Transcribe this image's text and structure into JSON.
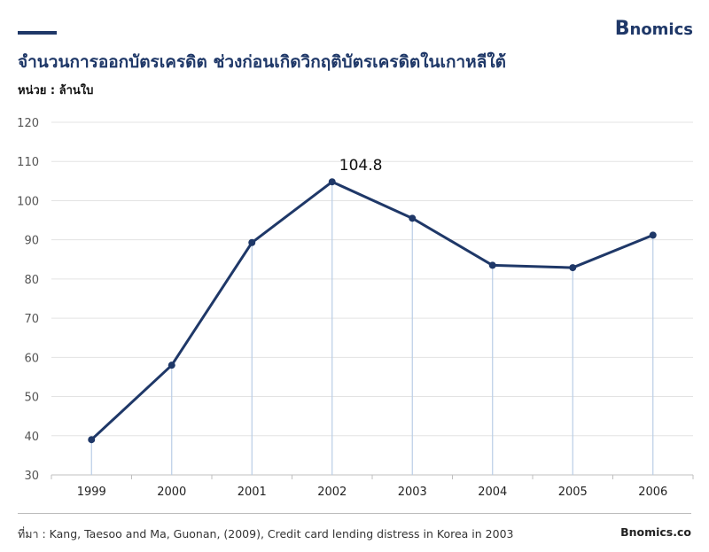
{
  "brand": {
    "first": "B",
    "rest": "nomics"
  },
  "colors": {
    "primary": "#1f3868",
    "grid": "#e3e3e3",
    "drop": "#b9cde6"
  },
  "header": {
    "title": "จำนวนการออกบัตรเครดิต ช่วงก่อนเกิดวิกฤติบัตรเครดิตในเกาหลีใต้",
    "unit": "หน่วย : ล้านใบ"
  },
  "footer": {
    "source": "ที่มา : Kang, Taesoo and Ma, Guonan, (2009), Credit card lending distress in Korea in 2003",
    "site": "Bnomics.co"
  },
  "chart_data": {
    "type": "line",
    "title": "",
    "xlabel": "",
    "ylabel": "",
    "x": [
      "1999",
      "2000",
      "2001",
      "2002",
      "2003",
      "2004",
      "2005",
      "2006"
    ],
    "series": [
      {
        "values": [
          39.0,
          58.0,
          89.3,
          104.8,
          95.5,
          83.5,
          82.9,
          91.2
        ]
      }
    ],
    "ylim": [
      30,
      120
    ],
    "yticks": [
      30,
      40,
      50,
      60,
      70,
      80,
      90,
      100,
      110,
      120
    ],
    "annotations": [
      {
        "x": "2002",
        "label": "104.8"
      }
    ],
    "grid": true,
    "drop_lines": true
  }
}
